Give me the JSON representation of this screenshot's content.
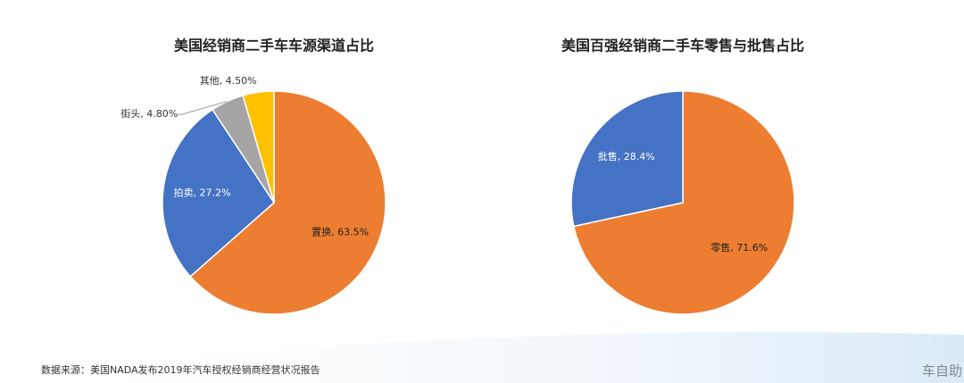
{
  "chart_data": [
    {
      "type": "pie",
      "title": "美国经销商二手车车源渠道占比",
      "categories": [
        "置换",
        "拍卖",
        "街头",
        "其他"
      ],
      "values": [
        63.5,
        27.2,
        4.8,
        4.5
      ],
      "value_labels": [
        "置换, 63.5%",
        "拍卖, 27.2%",
        "街头, 4.80%",
        "其他, 4.50%"
      ],
      "colors": [
        "#ed7d31",
        "#4472c4",
        "#a5a5a5",
        "#ffc000"
      ]
    },
    {
      "type": "pie",
      "title": "美国百强经销商二手车零售与批售占比",
      "categories": [
        "零售",
        "批售"
      ],
      "values": [
        71.6,
        28.4
      ],
      "value_labels": [
        "零售, 71.6%",
        "批售, 28.4%"
      ],
      "colors": [
        "#ed7d31",
        "#4472c4"
      ]
    }
  ],
  "source": "数据来源：美国NADA发布2019年汽车授权经销商经营状况报告",
  "watermark": "车自助"
}
